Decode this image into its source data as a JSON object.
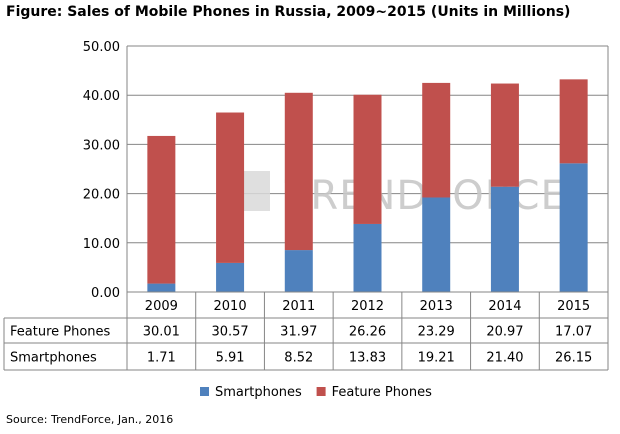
{
  "title": "Figure: Sales of Mobile Phones in Russia, 2009~2015 (Units in Millions)",
  "source": "Source: TrendForce, Jan., 2016",
  "watermark": "TRENDFORCE",
  "chart_data": {
    "type": "bar",
    "stacked": true,
    "categories": [
      "2009",
      "2010",
      "2011",
      "2012",
      "2013",
      "2014",
      "2015"
    ],
    "series": [
      {
        "name": "Smartphones",
        "color": "#4f81bd",
        "values": [
          1.71,
          5.91,
          8.52,
          13.83,
          19.21,
          21.4,
          26.15
        ],
        "labels": [
          "1.71",
          "5.91",
          "8.52",
          "13.83",
          "19.21",
          "21.40",
          "26.15"
        ]
      },
      {
        "name": "Feature Phones",
        "color": "#c0504d",
        "values": [
          30.01,
          30.57,
          31.97,
          26.26,
          23.29,
          20.97,
          17.07
        ],
        "labels": [
          "30.01",
          "30.57",
          "31.97",
          "26.26",
          "23.29",
          "20.97",
          "17.07"
        ]
      }
    ],
    "table_order": [
      "Feature Phones",
      "Smartphones"
    ],
    "ylim": [
      0,
      50
    ],
    "yticks": [
      "0.00",
      "10.00",
      "20.00",
      "30.00",
      "40.00",
      "50.00"
    ],
    "grid": true,
    "legend": "bottom"
  }
}
